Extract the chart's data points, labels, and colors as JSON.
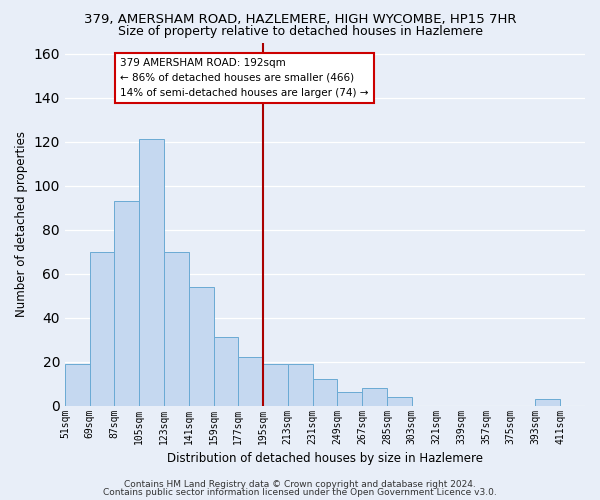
{
  "title": "379, AMERSHAM ROAD, HAZLEMERE, HIGH WYCOMBE, HP15 7HR",
  "subtitle": "Size of property relative to detached houses in Hazlemere",
  "xlabel": "Distribution of detached houses by size in Hazlemere",
  "ylabel": "Number of detached properties",
  "bar_labels": [
    "51sqm",
    "69sqm",
    "87sqm",
    "105sqm",
    "123sqm",
    "141sqm",
    "159sqm",
    "177sqm",
    "195sqm",
    "213sqm",
    "231sqm",
    "249sqm",
    "267sqm",
    "285sqm",
    "303sqm",
    "321sqm",
    "339sqm",
    "357sqm",
    "375sqm",
    "393sqm",
    "411sqm"
  ],
  "bar_heights": [
    19,
    70,
    93,
    121,
    70,
    54,
    31,
    22,
    19,
    19,
    12,
    6,
    8,
    4,
    0,
    0,
    0,
    0,
    0,
    3,
    0
  ],
  "bar_edges": [
    51,
    69,
    87,
    105,
    123,
    141,
    159,
    177,
    195,
    213,
    231,
    249,
    267,
    285,
    303,
    321,
    339,
    357,
    375,
    393,
    411,
    429
  ],
  "bar_color": "#c5d8f0",
  "bar_edge_color": "#6aaad4",
  "vline_x": 195,
  "vline_color": "#aa0000",
  "ylim": [
    0,
    165
  ],
  "annotation_title": "379 AMERSHAM ROAD: 192sqm",
  "annotation_line1": "← 86% of detached houses are smaller (466)",
  "annotation_line2": "14% of semi-detached houses are larger (74) →",
  "annotation_box_facecolor": "#ffffff",
  "annotation_box_edgecolor": "#cc0000",
  "footnote1": "Contains HM Land Registry data © Crown copyright and database right 2024.",
  "footnote2": "Contains public sector information licensed under the Open Government Licence v3.0.",
  "bg_color": "#e8eef8",
  "plot_bg_color": "#e8eef8",
  "grid_color": "#ffffff",
  "title_fontsize": 9.5,
  "subtitle_fontsize": 9,
  "axis_label_fontsize": 8.5,
  "tick_fontsize": 7,
  "footnote_fontsize": 6.5,
  "annotation_fontsize": 7.5
}
